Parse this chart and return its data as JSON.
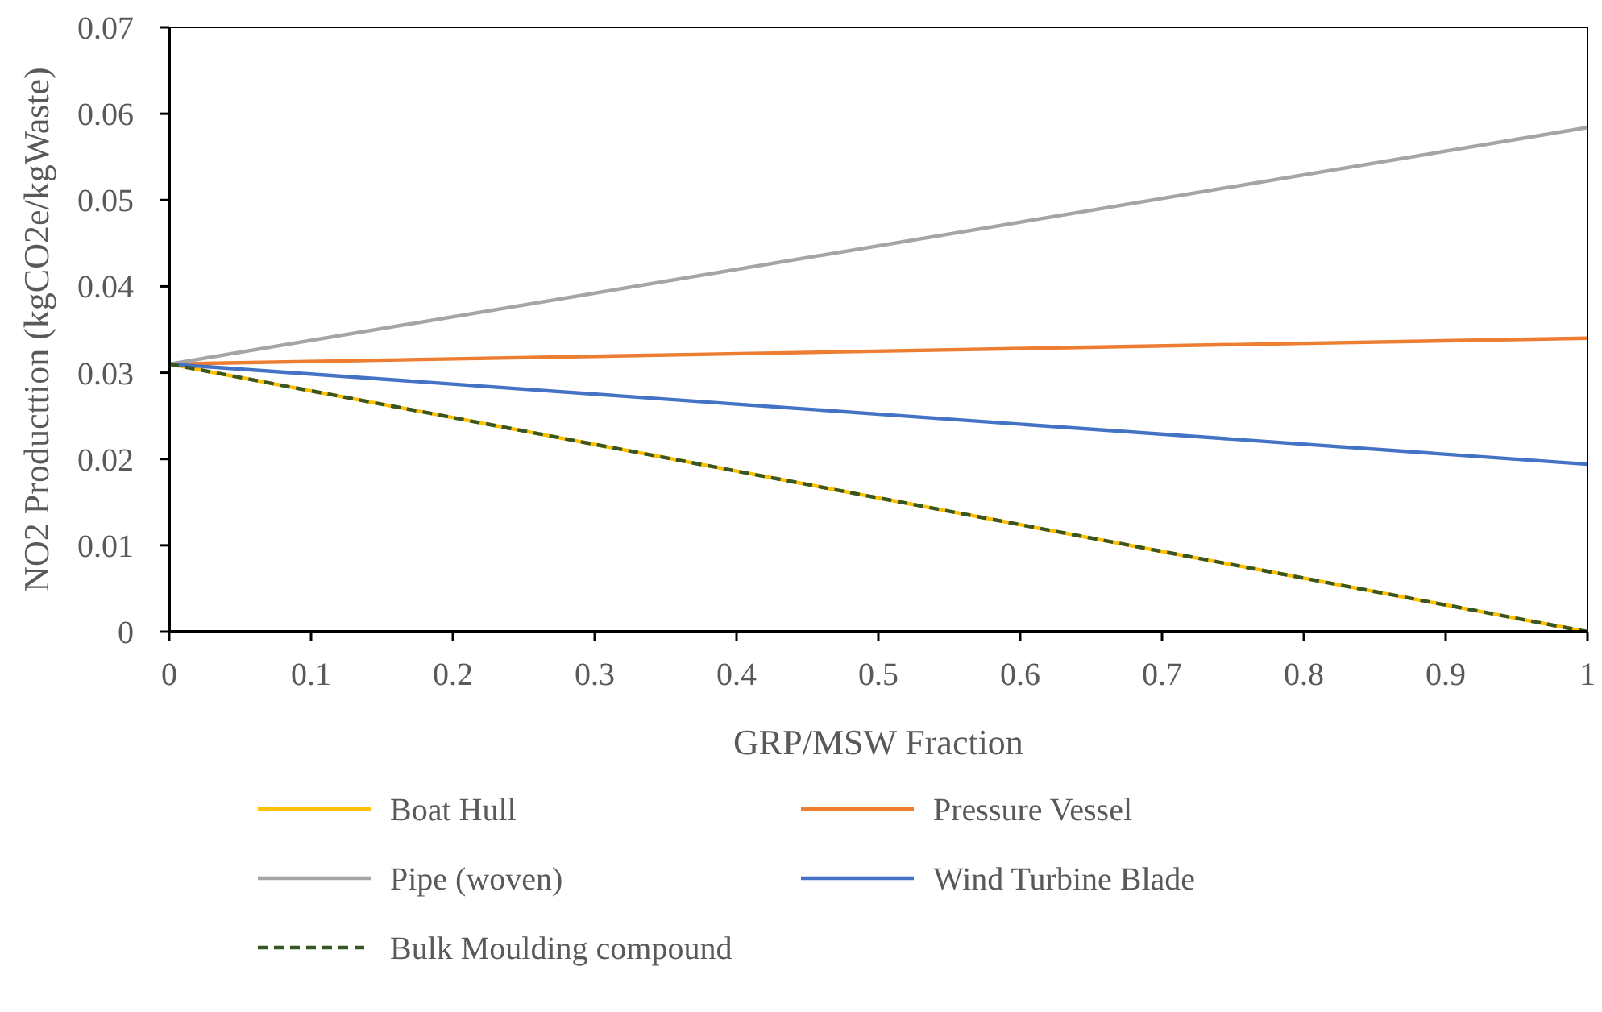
{
  "chart_data": {
    "type": "line",
    "xlabel": "GRP/MSW Fraction",
    "ylabel": "NO2 Producttion (kgCO2e/kgWaste)",
    "x": [
      0,
      1
    ],
    "xlim": [
      0,
      1
    ],
    "xticks": [
      0,
      0.1,
      0.2,
      0.3,
      0.4,
      0.5,
      0.6,
      0.7,
      0.8,
      0.9,
      1
    ],
    "ylim": [
      0,
      0.07
    ],
    "yticks": [
      0,
      0.01,
      0.02,
      0.03,
      0.04,
      0.05,
      0.06,
      0.07
    ],
    "grid": false,
    "legend": "bottom",
    "marker": "none",
    "series": [
      {
        "name": "Boat Hull",
        "color": "#ffc000",
        "values": [
          0.031,
          0
        ]
      },
      {
        "name": "Pressure Vessel",
        "color": "#ed7d31",
        "values": [
          0.031,
          0.034
        ]
      },
      {
        "name": "Pipe (woven)",
        "color": "#a5a5a5",
        "values": [
          0.031,
          0.0584
        ]
      },
      {
        "name": "Wind Turbine Blade",
        "color": "#4472c4",
        "values": [
          0.031,
          0.0194
        ]
      },
      {
        "name": "Bulk Moulding compound",
        "color": "#375623",
        "values": [
          0.031,
          0
        ],
        "line_style": "dashed"
      }
    ]
  }
}
